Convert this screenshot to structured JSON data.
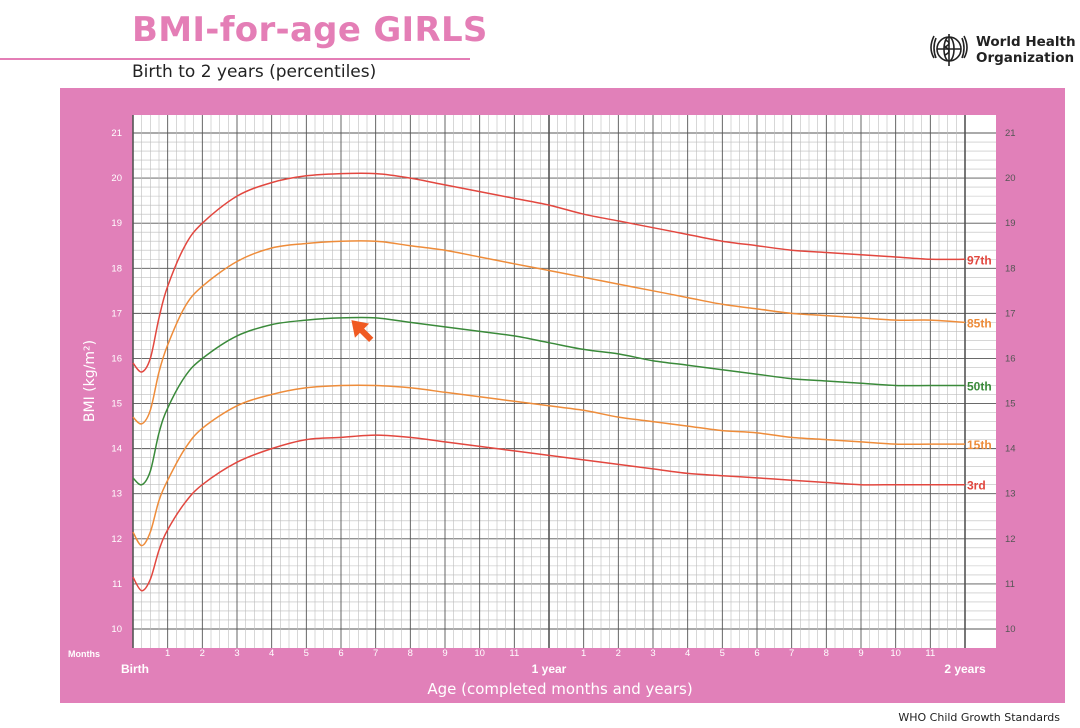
{
  "header": {
    "title": "BMI-for-age GIRLS",
    "subtitle": "Birth to 2 years (percentiles)",
    "org_line1": "World Health",
    "org_line2": "Organization",
    "logo_icon": "who-emblem-icon"
  },
  "footer": {
    "text": "WHO Child Growth Standards"
  },
  "colors": {
    "frame": "#e180b9",
    "grid": "#555555",
    "grid_minor": "#bdbdbd",
    "p97": "#e2473f",
    "p85": "#ee8c3a",
    "p50": "#3a8a3a",
    "p15": "#ee8c3a",
    "p3": "#e2473f",
    "marker": "#f05a22",
    "title": "#e47eb6"
  },
  "chart_data": {
    "type": "line",
    "title": "BMI-for-age GIRLS",
    "subtitle": "Birth to 2 years (percentiles)",
    "xlabel": "Age (completed months and years)",
    "ylabel": "BMI (kg/m²)",
    "x_unit": "months",
    "xlim": [
      0,
      24
    ],
    "ylim": [
      10,
      21
    ],
    "y_ticks": [
      10,
      11,
      12,
      13,
      14,
      15,
      16,
      17,
      18,
      19,
      20,
      21
    ],
    "months_label": "Months",
    "x_tick_labels": [
      {
        "x": 0,
        "label": "Birth",
        "bold": true
      },
      {
        "x": 1,
        "label": "1"
      },
      {
        "x": 2,
        "label": "2"
      },
      {
        "x": 3,
        "label": "3"
      },
      {
        "x": 4,
        "label": "4"
      },
      {
        "x": 5,
        "label": "5"
      },
      {
        "x": 6,
        "label": "6"
      },
      {
        "x": 7,
        "label": "7"
      },
      {
        "x": 8,
        "label": "8"
      },
      {
        "x": 9,
        "label": "9"
      },
      {
        "x": 10,
        "label": "10"
      },
      {
        "x": 11,
        "label": "11"
      },
      {
        "x": 12,
        "label": "1 year",
        "bold": true
      },
      {
        "x": 13,
        "label": "1"
      },
      {
        "x": 14,
        "label": "2"
      },
      {
        "x": 15,
        "label": "3"
      },
      {
        "x": 16,
        "label": "4"
      },
      {
        "x": 17,
        "label": "5"
      },
      {
        "x": 18,
        "label": "6"
      },
      {
        "x": 19,
        "label": "7"
      },
      {
        "x": 20,
        "label": "8"
      },
      {
        "x": 21,
        "label": "9"
      },
      {
        "x": 22,
        "label": "10"
      },
      {
        "x": 23,
        "label": "11"
      },
      {
        "x": 24,
        "label": "2 years",
        "bold": true
      }
    ],
    "grid": true,
    "x": [
      0,
      0.25,
      0.5,
      0.75,
      1,
      1.5,
      2,
      3,
      4,
      5,
      6,
      7,
      8,
      9,
      10,
      11,
      12,
      13,
      14,
      15,
      16,
      17,
      18,
      19,
      20,
      21,
      22,
      23,
      24
    ],
    "series": [
      {
        "name": "97th",
        "color_key": "p97",
        "values": [
          15.9,
          15.7,
          16.0,
          16.9,
          17.6,
          18.5,
          19.0,
          19.6,
          19.9,
          20.05,
          20.1,
          20.1,
          20.0,
          19.85,
          19.7,
          19.55,
          19.4,
          19.2,
          19.05,
          18.9,
          18.75,
          18.6,
          18.5,
          18.4,
          18.35,
          18.3,
          18.25,
          18.2,
          18.2
        ]
      },
      {
        "name": "85th",
        "color_key": "p85",
        "values": [
          14.7,
          14.55,
          14.85,
          15.7,
          16.3,
          17.15,
          17.6,
          18.15,
          18.45,
          18.55,
          18.6,
          18.6,
          18.5,
          18.4,
          18.25,
          18.1,
          17.95,
          17.8,
          17.65,
          17.5,
          17.35,
          17.2,
          17.1,
          17.0,
          16.95,
          16.9,
          16.85,
          16.85,
          16.8
        ]
      },
      {
        "name": "50th",
        "color_key": "p50",
        "values": [
          13.35,
          13.2,
          13.5,
          14.35,
          14.9,
          15.6,
          16.0,
          16.5,
          16.75,
          16.85,
          16.9,
          16.9,
          16.8,
          16.7,
          16.6,
          16.5,
          16.35,
          16.2,
          16.1,
          15.95,
          15.85,
          15.75,
          15.65,
          15.55,
          15.5,
          15.45,
          15.4,
          15.4,
          15.4
        ]
      },
      {
        "name": "15th",
        "color_key": "p15",
        "values": [
          12.15,
          11.85,
          12.15,
          12.85,
          13.3,
          14.0,
          14.45,
          14.95,
          15.2,
          15.35,
          15.4,
          15.4,
          15.35,
          15.25,
          15.15,
          15.05,
          14.95,
          14.85,
          14.7,
          14.6,
          14.5,
          14.4,
          14.35,
          14.25,
          14.2,
          14.15,
          14.1,
          14.1,
          14.1
        ]
      },
      {
        "name": "3rd",
        "color_key": "p3",
        "values": [
          11.15,
          10.85,
          11.1,
          11.75,
          12.2,
          12.8,
          13.2,
          13.7,
          14.0,
          14.2,
          14.25,
          14.3,
          14.25,
          14.15,
          14.05,
          13.95,
          13.85,
          13.75,
          13.65,
          13.55,
          13.45,
          13.4,
          13.35,
          13.3,
          13.25,
          13.2,
          13.2,
          13.2,
          13.2
        ]
      }
    ],
    "marker": {
      "x": 6.3,
      "y": 16.85,
      "shape": "arrow-up-left"
    }
  }
}
